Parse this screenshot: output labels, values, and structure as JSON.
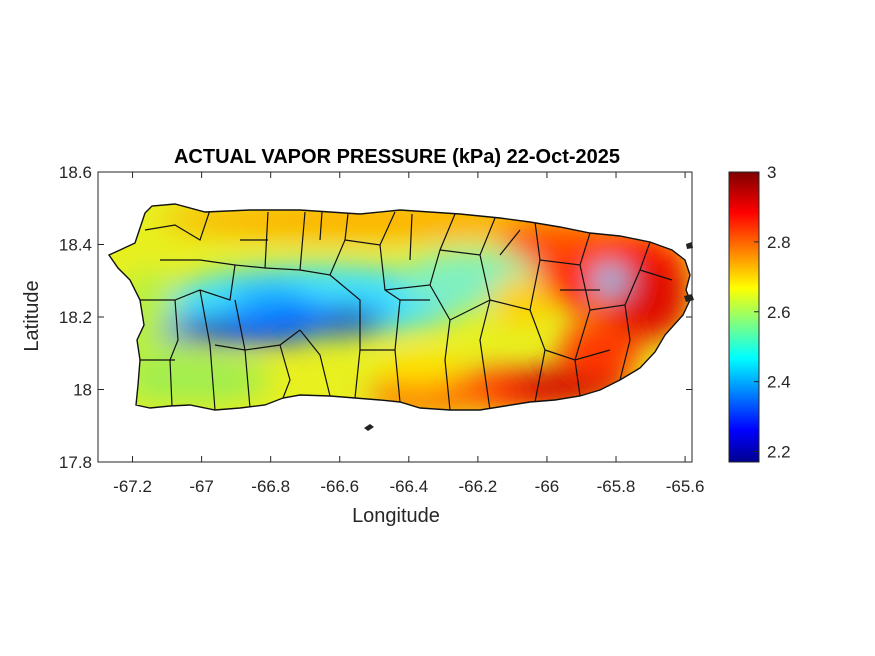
{
  "figure": {
    "title": "ACTUAL VAPOR PRESSURE (kPa) 22-Oct-2025",
    "xlabel": "Longitude",
    "ylabel": "Latitude"
  },
  "axes": {
    "xlim": [
      -67.3,
      -65.58
    ],
    "ylim": [
      17.8,
      18.6
    ],
    "xticks": [
      -67.2,
      -67,
      -66.8,
      -66.6,
      -66.4,
      -66.2,
      -66,
      -65.8,
      -65.6
    ],
    "xtick_labels": [
      "-67.2",
      "-67",
      "-66.8",
      "-66.6",
      "-66.4",
      "-66.2",
      "-66",
      "-65.8",
      "-65.6"
    ],
    "yticks": [
      18.6,
      18.4,
      18.2,
      18,
      17.8
    ],
    "ytick_labels": [
      "18.6",
      "18.4",
      "18.2",
      "18",
      "17.8"
    ]
  },
  "colorbar": {
    "colormap": "jet",
    "range": [
      2.17,
      3.0
    ],
    "ticks": [
      3,
      2.8,
      2.6,
      2.4,
      2.2
    ],
    "tick_labels": [
      "3",
      "2.8",
      "2.6",
      "2.4",
      "2.2"
    ],
    "colors": [
      "#00008f",
      "#0000ff",
      "#00ffff",
      "#ffff00",
      "#ff0000",
      "#800000"
    ]
  },
  "map_data": {
    "region": "Puerto Rico",
    "quantity_units": "kPa",
    "approx_field": [
      {
        "area": "east / northeast",
        "value": 2.88
      },
      {
        "area": "southeast coast",
        "value": 2.95
      },
      {
        "area": "south coast",
        "value": 2.85
      },
      {
        "area": "north coast",
        "value": 2.72
      },
      {
        "area": "central interior",
        "value": 2.35
      },
      {
        "area": "west-central mountains",
        "value": 2.28
      },
      {
        "area": "southwest",
        "value": 2.65
      },
      {
        "area": "west",
        "value": 2.68
      }
    ]
  }
}
